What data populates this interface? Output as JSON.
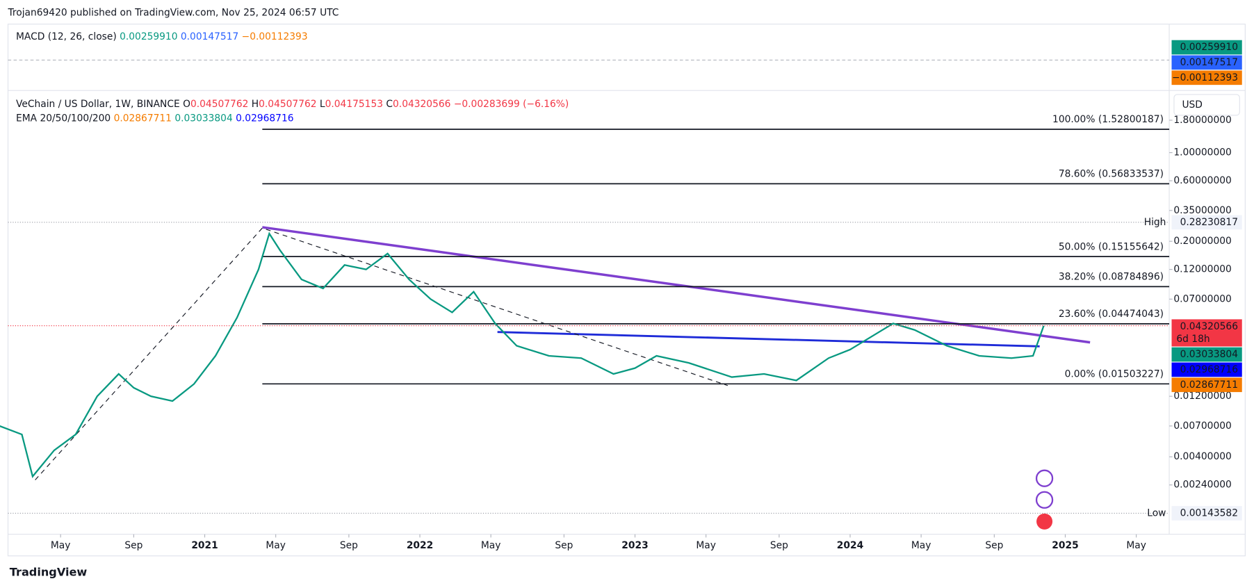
{
  "header": {
    "published": "Trojan69420 published on TradingView.com, Nov 25, 2024 06:57 UTC"
  },
  "macd": {
    "title": "MACD (12, 26, close)",
    "values": [
      "0.00259910",
      "0.00147517",
      "−0.00112393"
    ],
    "colors": [
      "#089981",
      "#2962ff",
      "#f57c00"
    ]
  },
  "legend": {
    "symbol": "VeChain / US Dollar, 1W, BINANCE",
    "ohlc": [
      [
        "O",
        "0.04507762"
      ],
      [
        "H",
        "0.04507762"
      ],
      [
        "L",
        "0.04175153"
      ],
      [
        "C",
        "0.04320566"
      ]
    ],
    "change": "−0.00283699 (−6.16%)",
    "ema_title": "EMA 20/50/100/200",
    "ema_values": [
      "0.02867711",
      "0.03033804",
      "0.02968716"
    ],
    "ema_colors": [
      "#f57c00",
      "#089981",
      "#0000ff"
    ]
  },
  "currency": "USD",
  "chart_data": {
    "type": "line",
    "log_scale": true,
    "grid": false,
    "color": "#089981",
    "x": [
      2020.0,
      2020.15,
      2020.2,
      2020.3,
      2020.4,
      2020.5,
      2020.6,
      2020.67,
      2020.75,
      2020.85,
      2020.95,
      2021.05,
      2021.15,
      2021.25,
      2021.3,
      2021.35,
      2021.45,
      2021.55,
      2021.65,
      2021.75,
      2021.85,
      2021.95,
      2022.05,
      2022.15,
      2022.25,
      2022.35,
      2022.45,
      2022.6,
      2022.75,
      2022.9,
      2023.0,
      2023.1,
      2023.25,
      2023.45,
      2023.6,
      2023.75,
      2023.9,
      2024.0,
      2024.2,
      2024.3,
      2024.45,
      2024.6,
      2024.75,
      2024.85,
      2024.9
    ],
    "values": [
      0.0075,
      0.006,
      0.0028,
      0.0045,
      0.006,
      0.012,
      0.018,
      0.014,
      0.012,
      0.011,
      0.015,
      0.025,
      0.05,
      0.12,
      0.23,
      0.17,
      0.1,
      0.085,
      0.13,
      0.12,
      0.16,
      0.1,
      0.07,
      0.055,
      0.08,
      0.045,
      0.03,
      0.025,
      0.024,
      0.018,
      0.02,
      0.025,
      0.022,
      0.017,
      0.018,
      0.016,
      0.024,
      0.028,
      0.045,
      0.04,
      0.03,
      0.025,
      0.024,
      0.025,
      0.04320566
    ],
    "xlim": [
      2019.95,
      2025.65
    ],
    "xticks": [
      {
        "value": 2020.33,
        "label": "May"
      },
      {
        "value": 2020.67,
        "label": "Sep"
      },
      2021,
      {
        "value": 2021.33,
        "label": "May"
      },
      {
        "value": 2021.67,
        "label": "Sep"
      },
      2022,
      {
        "value": 2022.33,
        "label": "May"
      },
      {
        "value": 2022.67,
        "label": "Sep"
      },
      2023,
      {
        "value": 2023.33,
        "label": "May"
      },
      {
        "value": 2023.67,
        "label": "Sep"
      },
      2024,
      {
        "value": 2024.33,
        "label": "May"
      },
      {
        "value": 2024.67,
        "label": "Sep"
      },
      2025,
      {
        "value": 2025.33,
        "label": "May"
      }
    ],
    "ylim": [
      0.00098,
      3.0
    ],
    "yticks": [
      {
        "value": 1.8,
        "label": "1.80000000"
      },
      {
        "value": 1.0,
        "label": "1.00000000"
      },
      {
        "value": 0.6,
        "label": "0.60000000"
      },
      {
        "value": 0.35,
        "label": "0.35000000"
      },
      {
        "value": 0.2,
        "label": "0.20000000"
      },
      {
        "value": 0.12,
        "label": "0.12000000"
      },
      {
        "value": 0.07,
        "label": "0.07000000"
      },
      {
        "value": 0.012,
        "label": "0.01200000"
      },
      {
        "value": 0.007,
        "label": "0.00700000"
      },
      {
        "value": 0.004,
        "label": "0.00400000"
      },
      {
        "value": 0.0024,
        "label": "0.00240000"
      }
    ],
    "fib_levels": [
      {
        "label": "100.00% (1.52800187)",
        "value": 1.52800187
      },
      {
        "label": "78.60% (0.56833537)",
        "value": 0.56833537
      },
      {
        "label": "50.00% (0.15155642)",
        "value": 0.15155642
      },
      {
        "label": "38.20% (0.08784896)",
        "value": 0.08784896
      },
      {
        "label": "23.60% (0.04474043)",
        "value": 0.04474043
      },
      {
        "label": "0.00% (0.01503227)",
        "value": 0.01503227
      }
    ],
    "high": {
      "label": "High",
      "value": 0.28230817
    },
    "low": {
      "label": "Low",
      "value": 0.00143582
    },
    "price_badges": [
      {
        "value": 0.04320566,
        "color": "#f23645",
        "note": "6d 18h"
      },
      {
        "value": 0.03033804,
        "color": "#089981"
      },
      {
        "value": 0.02968716,
        "color": "#0000ff"
      },
      {
        "value": 0.02867711,
        "color": "#f57c00"
      }
    ]
  },
  "footer": {
    "brand": "TradingView"
  }
}
